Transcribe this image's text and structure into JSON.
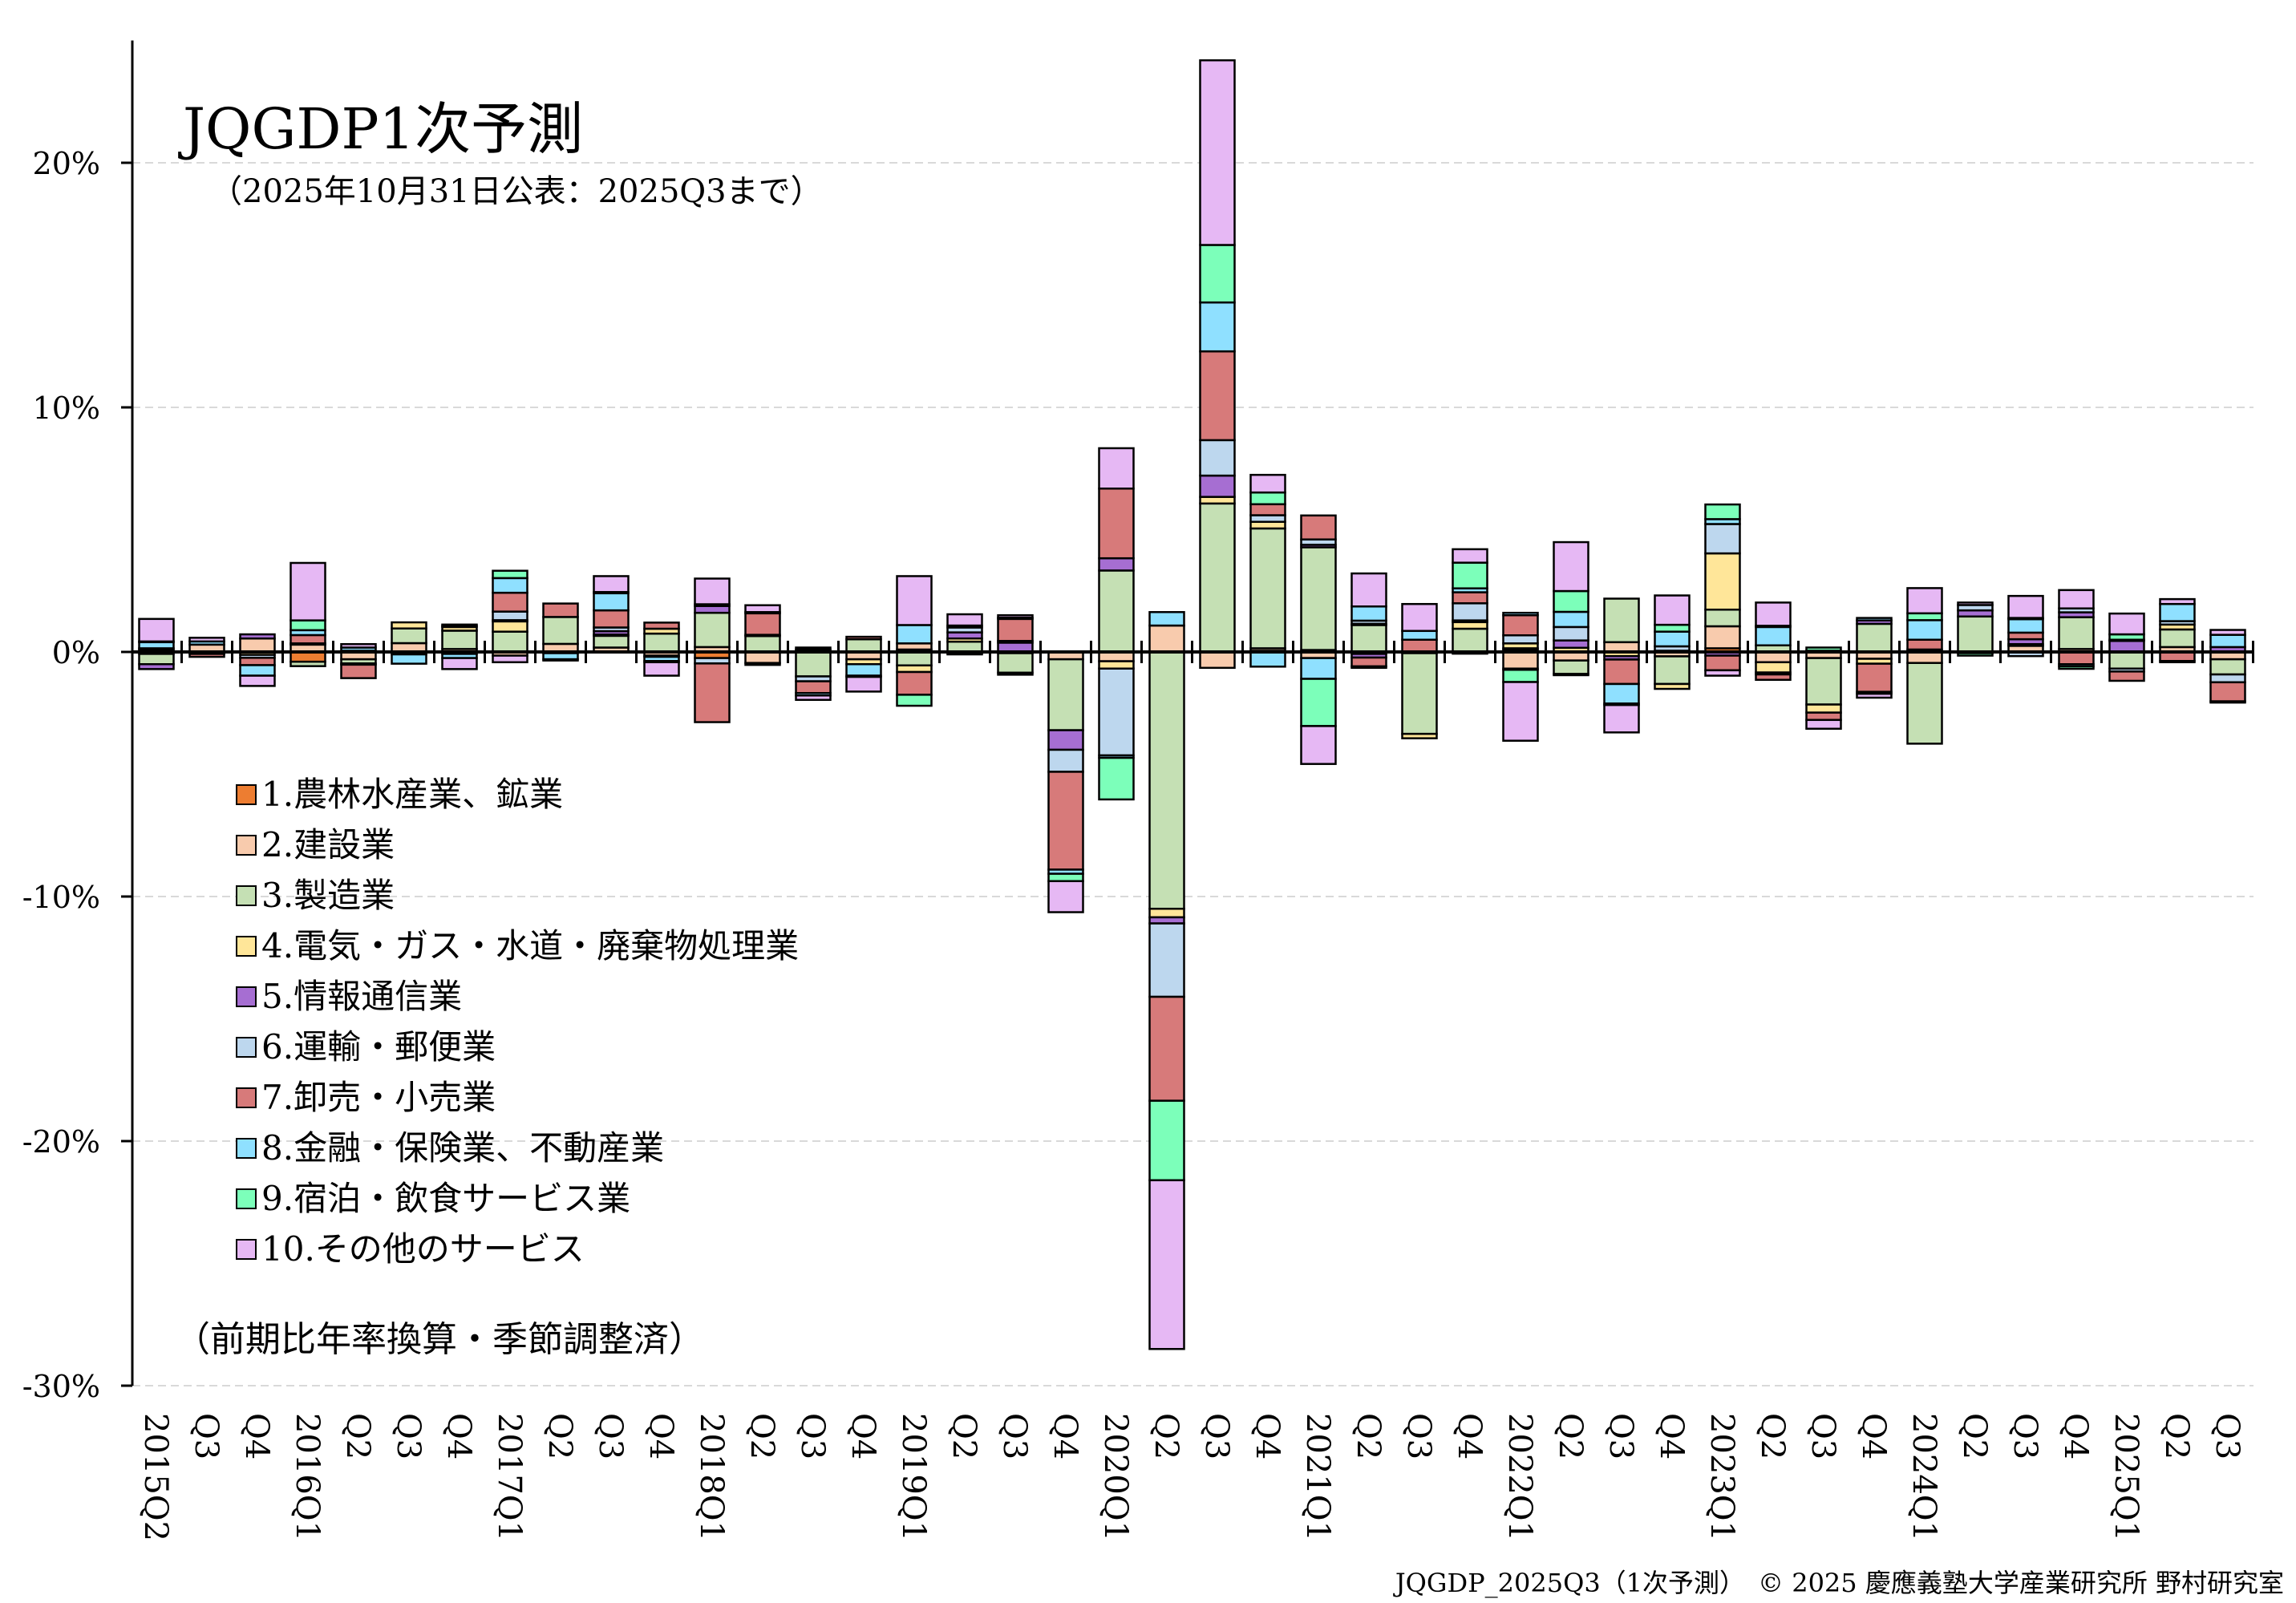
{
  "chart_data": {
    "type": "bar",
    "stacked": true,
    "title": "JQGDP1次予測",
    "subtitle": "（2025年10月31日公表：2025Q3まで）",
    "note": "（前期比年率換算・季節調整済）",
    "footer": "JQGDP_2025Q3（1次予測）　© 2025 慶應義塾大学産業研究所 野村研究室",
    "xlabel": "",
    "ylabel": "",
    "ylim": [
      -30,
      25
    ],
    "yticks": [
      20,
      10,
      0,
      -10,
      -20,
      -30
    ],
    "ytick_labels": [
      "20%",
      "10%",
      "0%",
      "-10%",
      "-20%",
      "-30%"
    ],
    "grid": "horizontal dashed",
    "legend_placement": "left-middle",
    "categories": [
      "2015Q2",
      "Q3",
      "Q4",
      "2016Q1",
      "Q2",
      "Q3",
      "Q4",
      "2017Q1",
      "Q2",
      "Q3",
      "Q4",
      "2018Q1",
      "Q2",
      "Q3",
      "Q4",
      "2019Q1",
      "Q2",
      "Q3",
      "Q4",
      "2020Q1",
      "Q2",
      "Q3",
      "Q4",
      "2021Q1",
      "Q2",
      "Q3",
      "Q4",
      "2022Q1",
      "Q2",
      "Q3",
      "Q4",
      "2023Q1",
      "Q2",
      "Q3",
      "Q4",
      "2024Q1",
      "Q2",
      "Q3",
      "Q4",
      "2025Q1",
      "Q2",
      "Q3"
    ],
    "series": [
      {
        "name": "1.農林水産業、鉱業",
        "color": "#ED7D31",
        "values": [
          0,
          0,
          0,
          -0.4,
          0,
          0,
          0,
          0,
          0,
          0,
          0,
          -0.25,
          0,
          0,
          0,
          0.1,
          0,
          -0.05,
          0,
          0,
          0,
          0,
          0.05,
          0.08,
          0,
          0,
          -0.07,
          0.1,
          0,
          0,
          0,
          0.15,
          0,
          0,
          0,
          0,
          0,
          0,
          0,
          0,
          0,
          0
        ]
      },
      {
        "name": "2.建設業",
        "color": "#F8CBAD",
        "values": [
          -0.08,
          0.3,
          0.55,
          0.3,
          -0.3,
          0.36,
          0.12,
          -0.15,
          0.33,
          0.18,
          -0.15,
          0.2,
          -0.45,
          0.1,
          -0.3,
          0.25,
          0,
          0,
          -0.3,
          -0.38,
          1.08,
          -0.65,
          0.1,
          -0.25,
          -0.08,
          -0.05,
          0,
          -0.68,
          -0.35,
          0.4,
          -0.18,
          0.9,
          -0.42,
          -0.25,
          -0.28,
          -0.45,
          0,
          0.25,
          0.12,
          0,
          0.2,
          -0.3
        ]
      },
      {
        "name": "3.製造業",
        "color": "#C5E0B4",
        "values": [
          -0.42,
          -0.05,
          0,
          -0.18,
          -0.17,
          0.6,
          0.75,
          0.83,
          1.1,
          0.48,
          0.75,
          1.4,
          0.65,
          -1.0,
          0.52,
          -0.55,
          0.42,
          -0.8,
          -2.9,
          3.33,
          -10.5,
          6.07,
          4.9,
          4.2,
          1.1,
          -3.3,
          0.95,
          0.05,
          -0.55,
          1.78,
          -1.13,
          0.68,
          0.27,
          -1.9,
          1.15,
          -3.3,
          1.45,
          0,
          1.3,
          -0.68,
          0.72,
          -0.62
        ]
      },
      {
        "name": "4.電気・ガス・水道・廃棄物処理業",
        "color": "#FFE699",
        "values": [
          0.1,
          -0.03,
          -0.12,
          0,
          0,
          0.25,
          0.15,
          0.42,
          0,
          0.05,
          0.2,
          0,
          0,
          0.08,
          -0.2,
          -0.27,
          0.13,
          0,
          0,
          -0.3,
          -0.35,
          0.27,
          0.27,
          0,
          0.05,
          -0.18,
          0.27,
          0.2,
          0.17,
          -0.17,
          -0.2,
          2.3,
          -0.42,
          -0.33,
          -0.2,
          0,
          -0.05,
          0.07,
          0,
          0,
          0.2,
          0
        ]
      },
      {
        "name": "5.情報通信業",
        "color": "#A66ED2",
        "values": [
          -0.2,
          0,
          0.17,
          0.05,
          0.05,
          -0.1,
          0.05,
          0.05,
          -0.05,
          0.14,
          0,
          0.28,
          0.05,
          0,
          0,
          0,
          0.25,
          0.38,
          -0.8,
          0.5,
          -0.25,
          0.87,
          0,
          0.1,
          -0.15,
          0,
          0.07,
          -0.05,
          0.3,
          -0.14,
          0.05,
          -0.15,
          0,
          0,
          0.14,
          0,
          0.25,
          0.2,
          0.2,
          0.45,
          0,
          0.2
        ]
      },
      {
        "name": "6.運輸・郵便業",
        "color": "#BDD7EE",
        "values": [
          0.05,
          0,
          -0.12,
          0,
          -0.05,
          0,
          -0.08,
          0.35,
          0,
          0.15,
          -0.05,
          -0.22,
          0,
          -0.2,
          0,
          0,
          0.2,
          0.07,
          -0.9,
          -3.55,
          -3.0,
          1.45,
          0.27,
          0.22,
          0.13,
          0,
          0.7,
          0.33,
          0.55,
          0,
          0.18,
          1.2,
          -0.08,
          0,
          0,
          0.1,
          0.22,
          -0.17,
          0.16,
          -0.12,
          0.14,
          -0.32
        ]
      },
      {
        "name": "7.卸売・小売業",
        "color": "#D77A7A",
        "values": [
          0,
          -0.12,
          -0.3,
          0.34,
          -0.55,
          0,
          0.05,
          0.77,
          0.55,
          0.7,
          0.25,
          -2.4,
          0.88,
          -0.48,
          0.1,
          -0.93,
          -0.05,
          0.9,
          -4.0,
          2.85,
          -4.25,
          3.63,
          0.45,
          0.98,
          -0.36,
          0.5,
          0.45,
          0.82,
          -0.05,
          -1.0,
          0,
          -0.6,
          -0.22,
          -0.3,
          -1.15,
          0.4,
          0,
          0.27,
          -0.5,
          -0.38,
          -0.37,
          -0.78
        ]
      },
      {
        "name": "8.金融・保険業、不動産業",
        "color": "#8FE0FF",
        "values": [
          0.25,
          0.13,
          -0.43,
          0.2,
          0.13,
          -0.38,
          -0.17,
          0.6,
          -0.25,
          0.7,
          -0.17,
          0.07,
          0.05,
          -0.1,
          -0.47,
          0.75,
          -0.05,
          0.05,
          -0.17,
          -0.1,
          0.55,
          2.0,
          -0.6,
          -0.85,
          0.58,
          0.36,
          0.16,
          0.1,
          0.62,
          -0.8,
          0.6,
          0.2,
          0.75,
          0.05,
          0.1,
          0.8,
          0,
          0.55,
          -0.09,
          0.05,
          0.7,
          0.5
        ]
      },
      {
        "name": "9.宿泊・飲食サービス業",
        "color": "#7CFFBA",
        "values": [
          0.03,
          0,
          0,
          0.4,
          0,
          0,
          0,
          0.3,
          0,
          0.05,
          -0.05,
          0,
          -0.08,
          0,
          -0.05,
          -0.45,
          0.08,
          -0.08,
          -0.3,
          -1.7,
          -3.25,
          2.35,
          0.48,
          -1.93,
          -0.06,
          0,
          1.05,
          -0.5,
          0.85,
          -0.06,
          0.28,
          0.6,
          0.05,
          0.13,
          -0.08,
          0.28,
          -0.1,
          0.05,
          -0.1,
          0.22,
          -0.05,
          -0.05
        ]
      },
      {
        "name": "10.その他のサービス",
        "color": "#E6B8F4",
        "values": [
          0.92,
          0.15,
          -0.42,
          2.35,
          0.14,
          0,
          -0.45,
          -0.27,
          -0.05,
          0.65,
          -0.55,
          1.05,
          0.28,
          -0.18,
          -0.6,
          2.0,
          0.46,
          0.1,
          -1.27,
          1.65,
          -6.9,
          7.55,
          0.72,
          -1.55,
          1.35,
          1.1,
          0.55,
          -2.4,
          2.0,
          -1.12,
          1.2,
          -0.22,
          0.95,
          -0.36,
          -0.16,
          1.03,
          0.1,
          0.9,
          0.75,
          0.85,
          0.2,
          0.2
        ]
      }
    ]
  }
}
